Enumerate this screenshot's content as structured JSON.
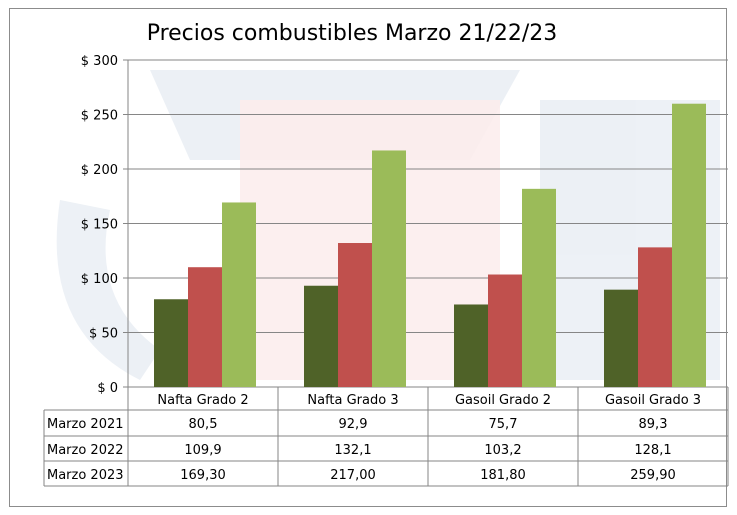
{
  "chart_data": {
    "type": "bar",
    "title": "Precios combustibles Marzo 21/22/23",
    "categories": [
      "Nafta Grado 2",
      "Nafta Grado 3",
      "Gasoil Grado 2",
      "Gasoil Grado 3"
    ],
    "series": [
      {
        "name": "Marzo 2021",
        "color": "#4f6228",
        "values": [
          80.5,
          92.9,
          75.7,
          89.3
        ],
        "labels": [
          "80,5",
          "92,9",
          "75,7",
          "89,3"
        ]
      },
      {
        "name": "Marzo 2022",
        "color": "#c0504d",
        "values": [
          109.9,
          132.1,
          103.2,
          128.1
        ],
        "labels": [
          "109,9",
          "132,1",
          "103,2",
          "128,1"
        ]
      },
      {
        "name": "Marzo 2023",
        "color": "#9bbb59",
        "values": [
          169.3,
          217.0,
          181.8,
          259.9
        ],
        "labels": [
          "169,30",
          "217,00",
          "181,80",
          "259,90"
        ]
      }
    ],
    "ylim": [
      0,
      300
    ],
    "yticks": [
      0,
      50,
      100,
      150,
      200,
      250,
      300
    ],
    "ytick_labels": [
      "$ 0",
      "$ 50",
      "$ 100",
      "$ 150",
      "$ 200",
      "$ 250",
      "$ 300"
    ],
    "grid": true,
    "legend": "data-table-below",
    "xlabel": "",
    "ylabel": ""
  }
}
